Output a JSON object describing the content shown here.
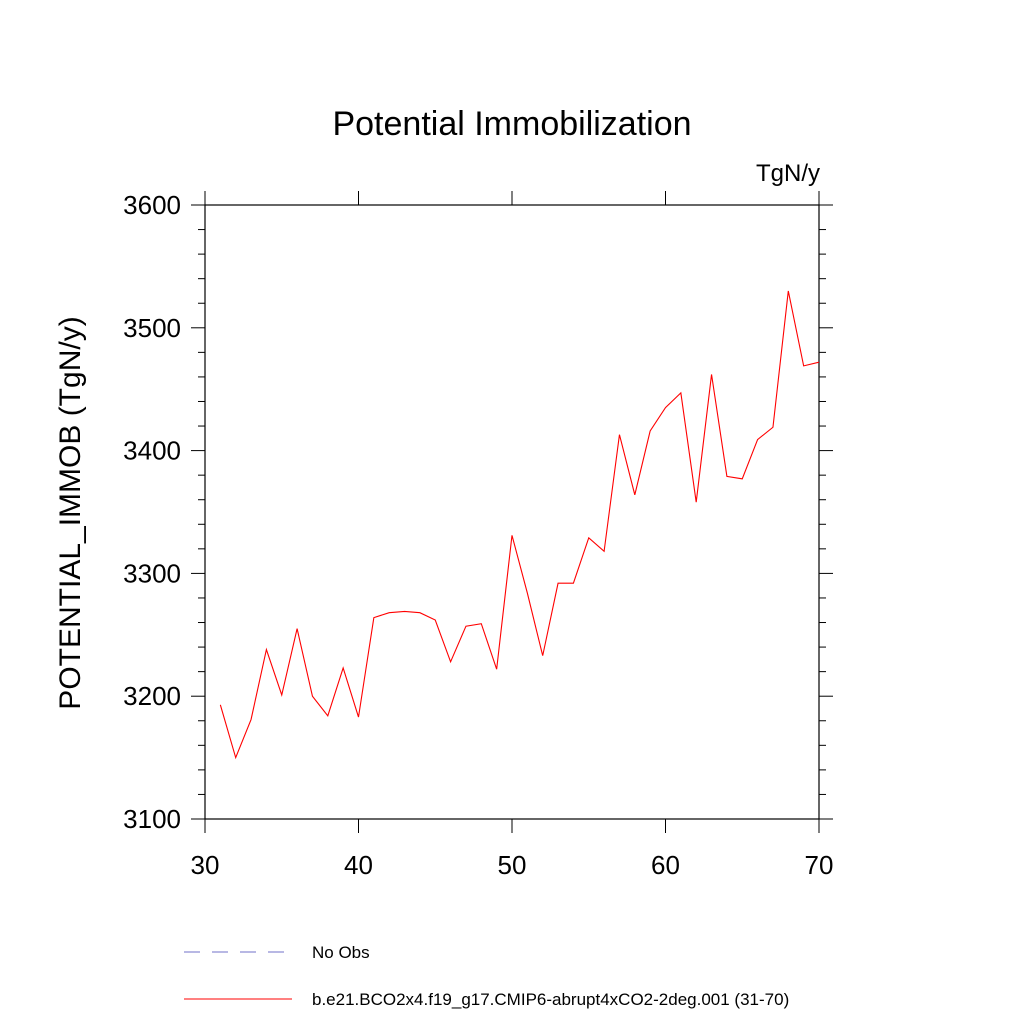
{
  "chart_data": {
    "type": "line",
    "title": "Potential Immobilization",
    "units_label": "TgN/y",
    "xlabel": "",
    "ylabel": "POTENTIAL_IMMOB  (TgN/y)",
    "xlim": [
      30,
      70
    ],
    "ylim": [
      3100,
      3600
    ],
    "x_ticks": [
      30,
      40,
      50,
      60,
      70
    ],
    "y_ticks": [
      3100,
      3200,
      3300,
      3400,
      3500,
      3600
    ],
    "x_tick_labels": [
      "30",
      "40",
      "50",
      "60",
      "70"
    ],
    "y_tick_labels": [
      "3100",
      "3200",
      "3300",
      "3400",
      "3500",
      "3600"
    ],
    "grid": false,
    "legend_position": "bottom",
    "series": [
      {
        "name": "b.e21.BCO2x4.f19_g17.CMIP6-abrupt4xCO2-2deg.001 (31-70)",
        "color": "#ff0000",
        "style": "solid",
        "x": [
          31,
          32,
          33,
          34,
          35,
          36,
          37,
          38,
          39,
          40,
          41,
          42,
          43,
          44,
          45,
          46,
          47,
          48,
          49,
          50,
          51,
          52,
          53,
          54,
          55,
          56,
          57,
          58,
          59,
          60,
          61,
          62,
          63,
          64,
          65,
          66,
          67,
          68,
          69,
          70
        ],
        "values": [
          3193,
          3150,
          3181,
          3238,
          3201,
          3255,
          3200,
          3184,
          3223,
          3183,
          3264,
          3268,
          3269,
          3268,
          3262,
          3228,
          3257,
          3259,
          3222,
          3331,
          3284,
          3233,
          3292,
          3292,
          3329,
          3318,
          3413,
          3364,
          3416,
          3435,
          3447,
          3358,
          3462,
          3379,
          3377,
          3409,
          3419,
          3530,
          3469,
          3472
        ]
      },
      {
        "name": "No Obs",
        "color": "#7070c8",
        "style": "dashed",
        "x": [],
        "values": []
      }
    ]
  }
}
